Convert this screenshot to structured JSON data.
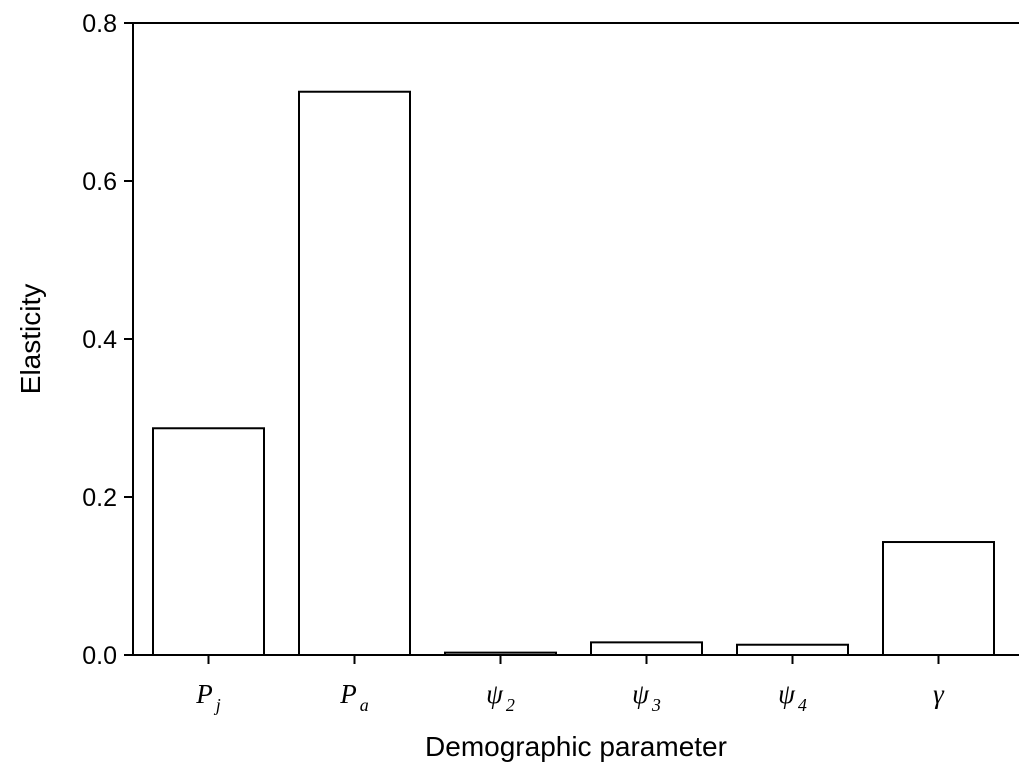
{
  "chart_data": {
    "type": "bar",
    "title": "",
    "xlabel": "Demographic parameter",
    "ylabel": "Elasticity",
    "ylim": [
      0,
      0.8
    ],
    "yticks": [
      "0.0",
      "0.2",
      "0.4",
      "0.6",
      "0.8"
    ],
    "categories": [
      {
        "base": "P",
        "sub": "j"
      },
      {
        "base": "P",
        "sub": "a"
      },
      {
        "base": "ψ",
        "sub": "2"
      },
      {
        "base": "ψ",
        "sub": "3"
      },
      {
        "base": "ψ",
        "sub": "4"
      },
      {
        "base": "γ",
        "sub": ""
      }
    ],
    "values": [
      0.287,
      0.713,
      0.003,
      0.016,
      0.013,
      0.143
    ],
    "bar_fill": "#ffffff",
    "bar_stroke": "#000000",
    "grid": false
  }
}
